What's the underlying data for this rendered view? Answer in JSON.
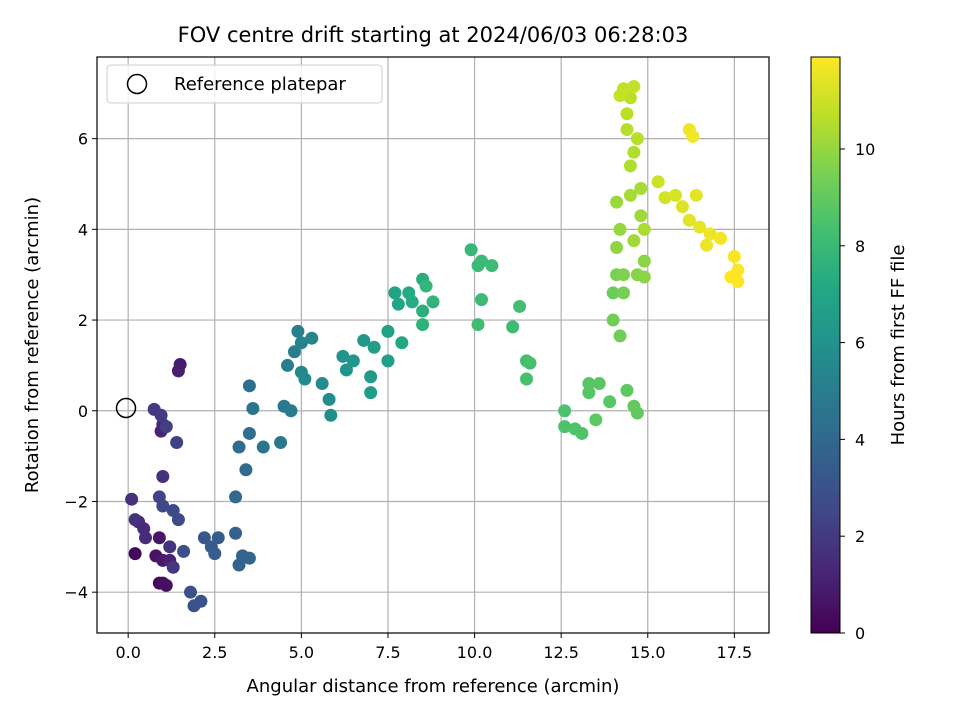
{
  "chart_data": {
    "type": "scatter",
    "title": "FOV centre drift starting at 2024/06/03 06:28:03",
    "xlabel": "Angular distance from reference (arcmin)",
    "ylabel": "Rotation from reference (arcmin)",
    "colorbar_label": "Hours from first FF file",
    "colormap": "viridis",
    "xlim": [
      -0.9,
      18.5
    ],
    "ylim": [
      -4.9,
      7.8
    ],
    "clim": [
      0,
      11.9
    ],
    "x_ticks": [
      0.0,
      2.5,
      5.0,
      7.5,
      10.0,
      12.5,
      15.0,
      17.5
    ],
    "x_tick_labels": [
      "0.0",
      "2.5",
      "5.0",
      "7.5",
      "10.0",
      "12.5",
      "15.0",
      "17.5"
    ],
    "y_ticks": [
      -4,
      -2,
      0,
      2,
      4,
      6
    ],
    "y_tick_labels": [
      "−4",
      "−2",
      "0",
      "2",
      "4",
      "6"
    ],
    "colorbar_ticks": [
      0,
      2,
      4,
      6,
      8,
      10
    ],
    "colorbar_tick_labels": [
      "0",
      "2",
      "4",
      "6",
      "8",
      "10"
    ],
    "grid": true,
    "legend": {
      "position": "top-left",
      "label": "Reference platepar",
      "marker": "open-circle"
    },
    "reference_point": {
      "x": 0,
      "y": 0
    },
    "points": [
      [
        0.2,
        -3.15,
        0.2
      ],
      [
        0.9,
        -3.8,
        0.3
      ],
      [
        1.0,
        -3.8,
        0.4
      ],
      [
        1.1,
        -3.85,
        0.5
      ],
      [
        0.8,
        -3.2,
        0.6
      ],
      [
        0.9,
        -2.8,
        0.7
      ],
      [
        1.0,
        -3.3,
        0.8
      ],
      [
        1.5,
        1.02,
        0.9
      ],
      [
        1.45,
        0.88,
        1.0
      ],
      [
        1.2,
        -3.3,
        1.1
      ],
      [
        0.95,
        -0.45,
        1.2
      ],
      [
        1.0,
        -0.3,
        1.3
      ],
      [
        0.3,
        -2.45,
        1.4
      ],
      [
        0.45,
        -2.6,
        1.5
      ],
      [
        0.5,
        -2.8,
        1.5
      ],
      [
        0.1,
        -1.95,
        1.6
      ],
      [
        0.2,
        -2.4,
        1.7
      ],
      [
        1.0,
        -1.45,
        1.7
      ],
      [
        1.2,
        -3.0,
        1.8
      ],
      [
        1.3,
        -3.45,
        1.9
      ],
      [
        0.75,
        0.03,
        2.0
      ],
      [
        0.95,
        -0.1,
        2.1
      ],
      [
        1.1,
        -0.35,
        2.2
      ],
      [
        1.4,
        -0.7,
        2.3
      ],
      [
        0.9,
        -1.9,
        2.4
      ],
      [
        1.0,
        -2.1,
        2.5
      ],
      [
        1.3,
        -2.2,
        2.6
      ],
      [
        1.45,
        -2.4,
        2.7
      ],
      [
        1.6,
        -3.1,
        2.8
      ],
      [
        1.8,
        -4.0,
        2.9
      ],
      [
        1.9,
        -4.3,
        3.0
      ],
      [
        2.1,
        -4.2,
        3.1
      ],
      [
        2.2,
        -2.8,
        3.2
      ],
      [
        2.4,
        -3.0,
        3.3
      ],
      [
        2.6,
        -2.8,
        3.4
      ],
      [
        2.5,
        -3.15,
        3.5
      ],
      [
        3.1,
        -2.7,
        3.6
      ],
      [
        3.2,
        -3.4,
        3.7
      ],
      [
        3.3,
        -3.2,
        3.8
      ],
      [
        3.5,
        -3.25,
        3.9
      ],
      [
        3.1,
        -1.9,
        4.0
      ],
      [
        3.4,
        -1.3,
        4.1
      ],
      [
        3.2,
        -0.8,
        4.2
      ],
      [
        3.5,
        -0.5,
        4.3
      ],
      [
        3.5,
        0.55,
        4.4
      ],
      [
        3.6,
        0.05,
        4.5
      ],
      [
        3.9,
        -0.8,
        4.6
      ],
      [
        4.4,
        -0.7,
        4.7
      ],
      [
        4.5,
        0.1,
        4.8
      ],
      [
        4.7,
        0.0,
        4.9
      ],
      [
        4.6,
        1.0,
        5.0
      ],
      [
        4.8,
        1.3,
        5.1
      ],
      [
        4.9,
        1.75,
        5.2
      ],
      [
        5.0,
        1.5,
        5.3
      ],
      [
        5.3,
        1.6,
        5.4
      ],
      [
        5.0,
        0.85,
        5.5
      ],
      [
        5.1,
        0.7,
        5.6
      ],
      [
        5.6,
        0.6,
        5.7
      ],
      [
        5.8,
        0.25,
        5.8
      ],
      [
        5.85,
        -0.1,
        5.9
      ],
      [
        6.2,
        1.2,
        6.0
      ],
      [
        6.3,
        0.9,
        6.1
      ],
      [
        6.5,
        1.1,
        6.2
      ],
      [
        6.8,
        1.55,
        6.3
      ],
      [
        7.0,
        0.75,
        6.4
      ],
      [
        7.0,
        0.4,
        6.5
      ],
      [
        7.1,
        1.4,
        6.6
      ],
      [
        7.5,
        1.1,
        6.7
      ],
      [
        7.5,
        1.75,
        6.8
      ],
      [
        7.7,
        2.6,
        6.9
      ],
      [
        7.8,
        2.35,
        7.0
      ],
      [
        7.9,
        1.5,
        7.1
      ],
      [
        8.1,
        2.6,
        7.2
      ],
      [
        8.2,
        2.4,
        7.3
      ],
      [
        8.5,
        2.9,
        7.4
      ],
      [
        8.5,
        2.2,
        7.5
      ],
      [
        8.5,
        1.9,
        7.6
      ],
      [
        8.8,
        2.4,
        7.7
      ],
      [
        8.6,
        2.75,
        7.8
      ],
      [
        9.9,
        3.55,
        7.9
      ],
      [
        10.1,
        3.2,
        8.0
      ],
      [
        10.2,
        3.3,
        8.0
      ],
      [
        10.5,
        3.2,
        8.1
      ],
      [
        10.2,
        2.45,
        8.1
      ],
      [
        10.1,
        1.9,
        8.2
      ],
      [
        11.1,
        1.85,
        8.2
      ],
      [
        11.3,
        2.3,
        8.3
      ],
      [
        11.5,
        1.1,
        8.3
      ],
      [
        11.5,
        0.7,
        8.4
      ],
      [
        11.6,
        1.05,
        8.4
      ],
      [
        12.6,
        -0.35,
        8.5
      ],
      [
        12.6,
        0.0,
        8.5
      ],
      [
        12.9,
        -0.4,
        8.6
      ],
      [
        13.1,
        -0.5,
        8.6
      ],
      [
        13.3,
        0.4,
        8.7
      ],
      [
        13.3,
        0.6,
        8.7
      ],
      [
        13.6,
        0.6,
        8.8
      ],
      [
        13.9,
        0.2,
        8.8
      ],
      [
        13.5,
        -0.2,
        8.9
      ],
      [
        14.4,
        0.45,
        8.9
      ],
      [
        14.6,
        0.1,
        9.0
      ],
      [
        14.7,
        -0.05,
        9.0
      ],
      [
        14.0,
        2.6,
        9.2
      ],
      [
        14.0,
        2.0,
        9.3
      ],
      [
        14.2,
        1.65,
        9.3
      ],
      [
        14.3,
        2.6,
        9.4
      ],
      [
        14.1,
        3.0,
        9.5
      ],
      [
        14.3,
        3.0,
        9.6
      ],
      [
        14.7,
        3.0,
        9.7
      ],
      [
        14.9,
        2.95,
        9.8
      ],
      [
        14.9,
        3.3,
        9.8
      ],
      [
        14.1,
        3.6,
        9.9
      ],
      [
        14.2,
        4.0,
        10.0
      ],
      [
        14.1,
        4.6,
        10.1
      ],
      [
        14.6,
        3.75,
        10.2
      ],
      [
        14.8,
        4.3,
        10.2
      ],
      [
        14.5,
        4.75,
        10.3
      ],
      [
        14.8,
        4.9,
        10.3
      ],
      [
        14.9,
        4.0,
        10.4
      ],
      [
        14.5,
        5.4,
        10.5
      ],
      [
        14.6,
        5.7,
        10.5
      ],
      [
        14.4,
        6.2,
        10.6
      ],
      [
        14.7,
        6.0,
        10.6
      ],
      [
        14.4,
        6.55,
        10.7
      ],
      [
        14.5,
        6.9,
        10.7
      ],
      [
        14.3,
        7.1,
        10.8
      ],
      [
        14.6,
        7.15,
        10.8
      ],
      [
        14.2,
        6.95,
        10.9
      ],
      [
        15.3,
        5.05,
        11.0
      ],
      [
        15.5,
        4.7,
        11.1
      ],
      [
        15.8,
        4.75,
        11.2
      ],
      [
        16.0,
        4.5,
        11.3
      ],
      [
        16.2,
        4.2,
        11.4
      ],
      [
        16.4,
        4.75,
        11.4
      ],
      [
        16.5,
        4.05,
        11.5
      ],
      [
        16.7,
        3.65,
        11.6
      ],
      [
        16.8,
        3.9,
        11.6
      ],
      [
        17.1,
        3.8,
        11.7
      ],
      [
        17.5,
        3.4,
        11.8
      ],
      [
        17.6,
        3.1,
        11.85
      ],
      [
        17.6,
        2.85,
        11.9
      ],
      [
        16.2,
        6.2,
        11.6
      ],
      [
        16.3,
        6.05,
        11.7
      ],
      [
        17.4,
        2.95,
        11.9
      ]
    ]
  }
}
